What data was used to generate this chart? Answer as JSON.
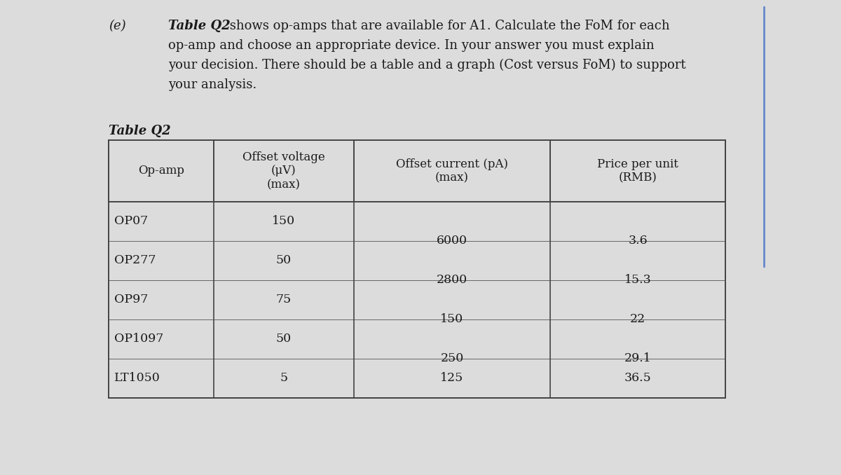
{
  "bg_color": "#c8c8c8",
  "paper_color": "#dcdcdc",
  "text_color": "#1a1a1a",
  "table_border": "#444444",
  "cell_line": "#666666",
  "blue_line_color": "#6688cc",
  "title_label": "(e)",
  "q_line1_bold": "Table Q2",
  "q_line1_rest": " shows op-amps that are available for A1. Calculate the FoM for each",
  "q_line2": "op-amp and choose an appropriate device. In your answer you must explain",
  "q_line3": "your decision. There should be a table and a graph (Cost versus FoM) to support",
  "q_line4": "your analysis.",
  "table_title": "Table Q2",
  "col0_header": "Op-amp",
  "col1_header": "Offset voltage\n(μV)\n(max)",
  "col2_header": "Offset current (pA)\n(max)",
  "col3_header": "Price per unit\n(RMB)",
  "op_amps": [
    "OP07",
    "OP277",
    "OP97",
    "OP1097",
    "LT1050"
  ],
  "voltages": [
    "150",
    "50",
    "75",
    "50",
    "5"
  ],
  "currents": [
    "6000",
    "2800",
    "150",
    "250",
    "125"
  ],
  "prices": [
    "3.6",
    "15.3",
    "22",
    "29.1",
    "36.5"
  ],
  "n_rows": 5,
  "font_size_q": 13,
  "font_size_table_header": 12,
  "font_size_table_data": 12.5,
  "font_size_title": 13,
  "font_size_label": 13
}
